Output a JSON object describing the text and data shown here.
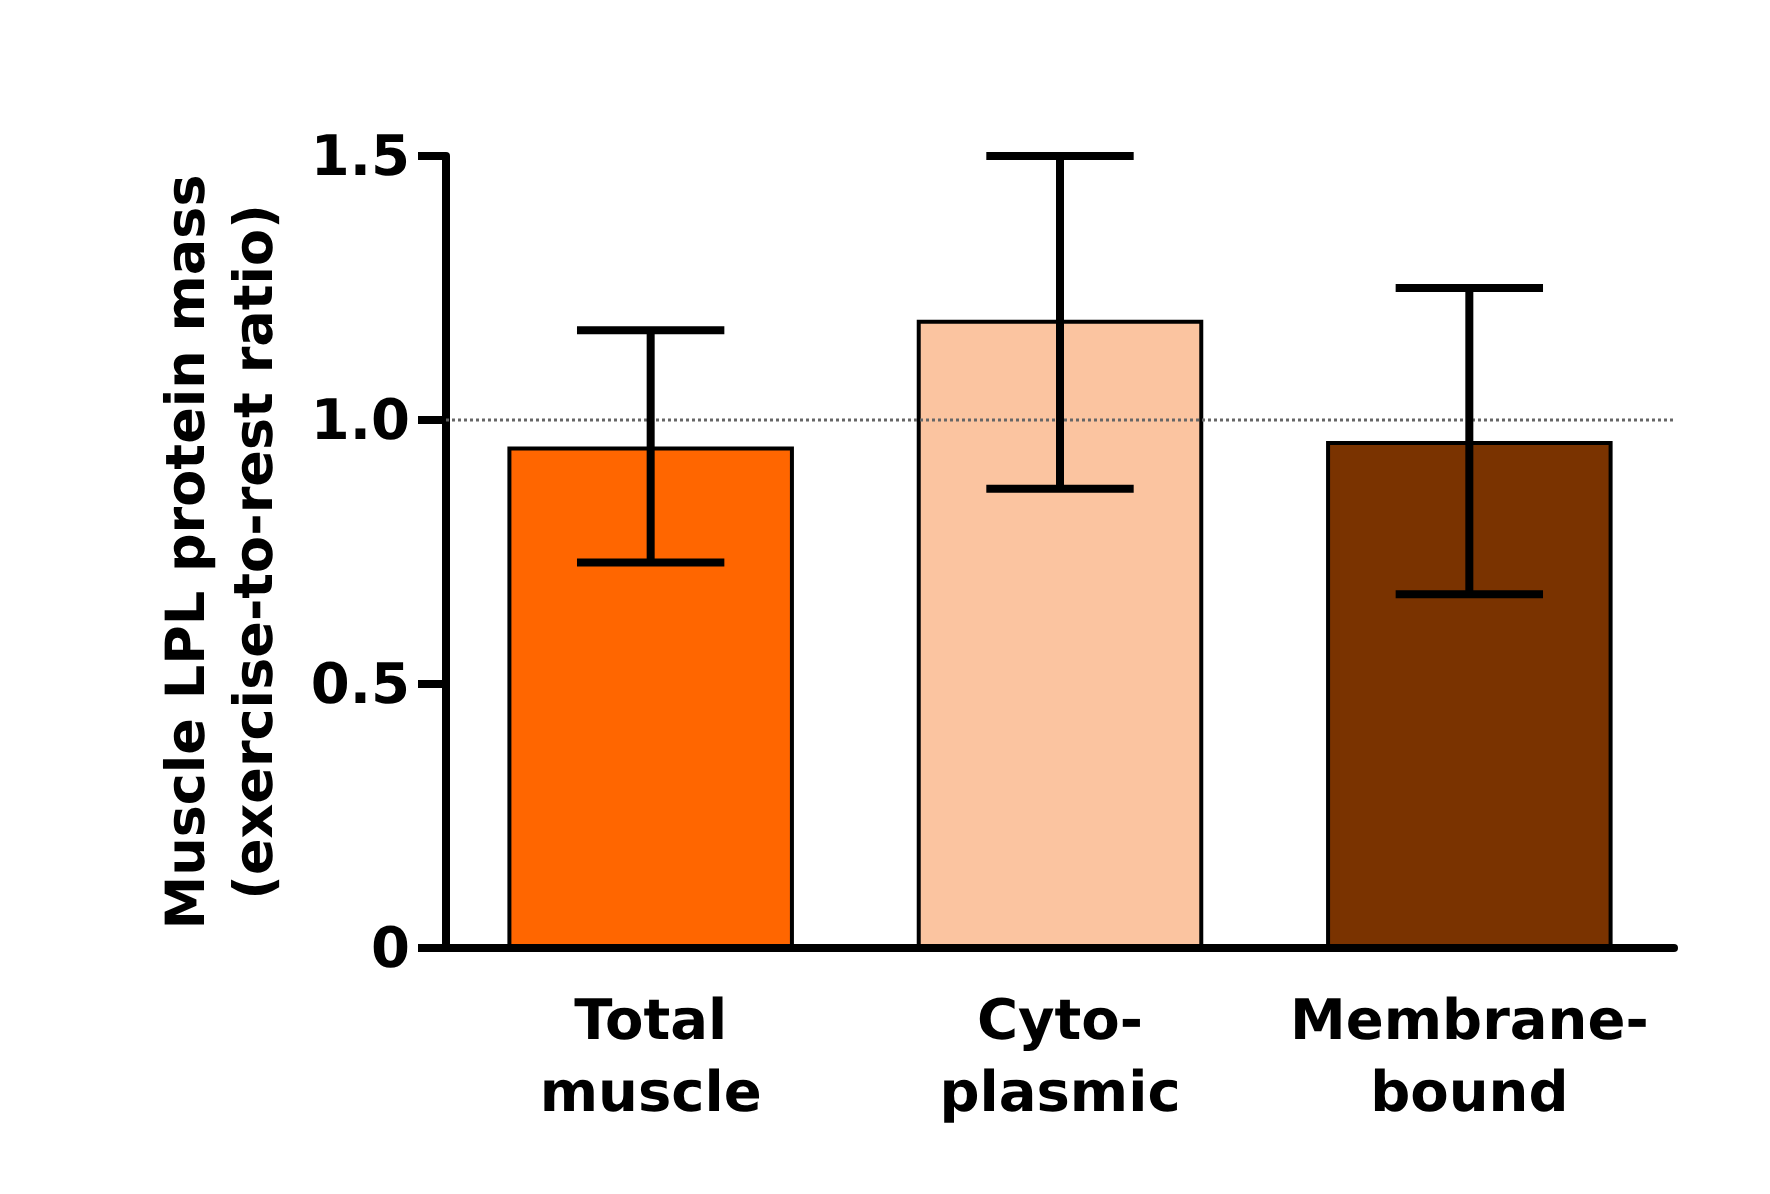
{
  "chart_data": {
    "type": "bar",
    "ylabel": "Muscle LPL protein mass\n(exercise-to-rest ratio)",
    "categories": [
      "Total muscle",
      "Cyto-plasmic",
      "Membrane-bound"
    ],
    "values": [
      0.95,
      1.19,
      0.96
    ],
    "colors": [
      "#ff6600",
      "#fbc4a0",
      "#7a3300"
    ],
    "errors": [
      [
        0.73,
        1.17
      ],
      [
        0.87,
        1.5
      ],
      [
        0.67,
        1.25
      ]
    ],
    "ylim": [
      0,
      1.5
    ],
    "yticks": [
      0,
      {
        "value": 0.5,
        "label": "0.5"
      },
      {
        "value": 1,
        "label": "1.0"
      },
      {
        "value": 1.5,
        "label": "1.5"
      }
    ],
    "ref_lines": [
      {
        "axis": "y",
        "value": 1,
        "label": null,
        "color": "#666666",
        "line_style": "dotted"
      }
    ],
    "grid": false
  }
}
